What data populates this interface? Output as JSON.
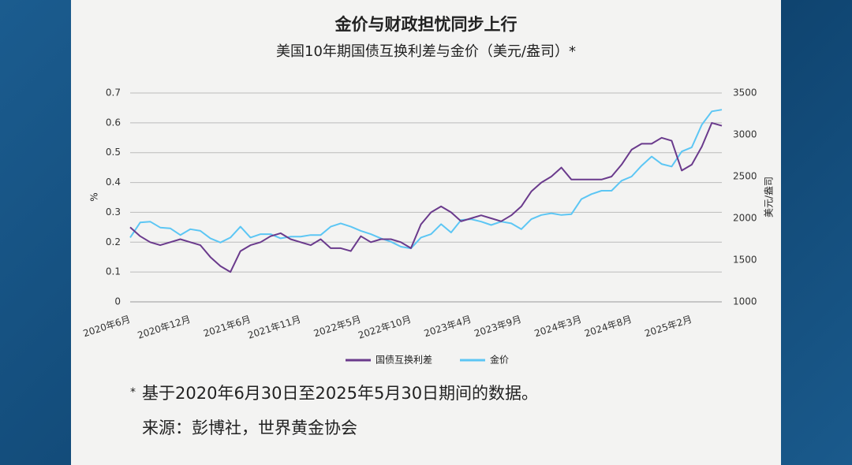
{
  "chart_data": {
    "type": "line",
    "title": "金价与财政担忧同步上行",
    "subtitle": "美国10年期国债互换利差与金价（美元/盎司）*",
    "y_label": "%",
    "y2_label": "美元/盎司",
    "categories": [
      "2020年6月",
      null,
      null,
      null,
      null,
      null,
      "2020年12月",
      null,
      null,
      null,
      null,
      null,
      "2021年6月",
      null,
      null,
      null,
      null,
      "2021年11月",
      null,
      null,
      null,
      null,
      null,
      "2022年5月",
      null,
      null,
      null,
      null,
      "2022年10月",
      null,
      null,
      null,
      null,
      null,
      "2023年4月",
      null,
      null,
      null,
      null,
      "2023年9月",
      null,
      null,
      null,
      null,
      null,
      "2024年3月",
      null,
      null,
      null,
      null,
      "2024年8月",
      null,
      null,
      null,
      null,
      null,
      "2025年2月",
      null,
      null,
      null
    ],
    "series": [
      {
        "name": "国债互换利差",
        "color": "#6a3a8c",
        "values": [
          0.25,
          0.22,
          0.2,
          0.19,
          0.2,
          0.21,
          0.2,
          0.19,
          0.15,
          0.12,
          0.1,
          0.17,
          0.19,
          0.2,
          0.22,
          0.23,
          0.21,
          0.2,
          0.19,
          0.21,
          0.18,
          0.18,
          0.17,
          0.22,
          0.2,
          0.21,
          0.21,
          0.2,
          0.18,
          0.26,
          0.3,
          0.32,
          0.3,
          0.27,
          0.28,
          0.29,
          0.28,
          0.27,
          0.29,
          0.32,
          0.37,
          0.4,
          0.42,
          0.45,
          0.41,
          0.41,
          0.41,
          0.41,
          0.42,
          0.46,
          0.51,
          0.53,
          0.53,
          0.55,
          0.54,
          0.44,
          0.46,
          0.52,
          0.6,
          0.59
        ]
      },
      {
        "name": "金价",
        "color": "#5cc6f4",
        "axis": "y2",
        "values": [
          1770,
          1950,
          1960,
          1890,
          1880,
          1800,
          1870,
          1850,
          1760,
          1710,
          1770,
          1900,
          1770,
          1810,
          1810,
          1760,
          1780,
          1780,
          1800,
          1800,
          1900,
          1940,
          1900,
          1850,
          1810,
          1760,
          1720,
          1660,
          1640,
          1770,
          1810,
          1930,
          1830,
          1980,
          1990,
          1960,
          1920,
          1960,
          1940,
          1870,
          1990,
          2040,
          2060,
          2040,
          2050,
          2230,
          2290,
          2330,
          2330,
          2450,
          2500,
          2630,
          2740,
          2650,
          2620,
          2800,
          2850,
          3120,
          3280,
          3300
        ]
      }
    ],
    "ylim": [
      0,
      0.7
    ],
    "yticks": [
      0,
      0.1,
      0.2,
      0.3,
      0.4,
      0.5,
      0.6,
      0.7
    ],
    "y2lim": [
      1000,
      3500
    ],
    "y2ticks": [
      1000,
      1500,
      2000,
      2500,
      3000,
      3500
    ],
    "grid": true,
    "footnote_mark": "*",
    "footnote": "基于2020年6月30日至2025年5月30日期间的数据。",
    "source": "来源：彭博社，世界黄金协会"
  }
}
